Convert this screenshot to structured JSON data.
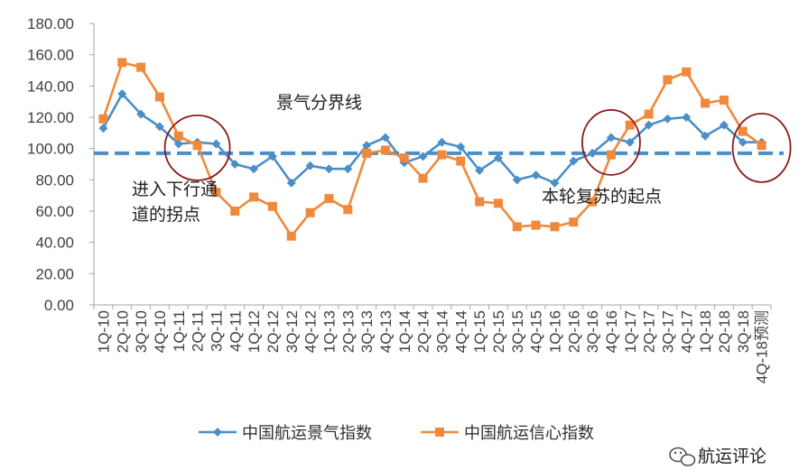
{
  "chart_data": {
    "type": "line",
    "categories": [
      "1Q-10",
      "2Q-10",
      "3Q-10",
      "4Q-10",
      "1Q-11",
      "2Q-11",
      "3Q-11",
      "4Q-11",
      "1Q-12",
      "2Q-12",
      "3Q-12",
      "4Q-12",
      "1Q-13",
      "2Q-13",
      "3Q-13",
      "4Q-13",
      "1Q-14",
      "2Q-14",
      "3Q-14",
      "4Q-14",
      "1Q-15",
      "2Q-15",
      "3Q-15",
      "4Q-15",
      "1Q-16",
      "2Q-16",
      "3Q-16",
      "4Q-16",
      "1Q-17",
      "2Q-17",
      "3Q-17",
      "4Q-17",
      "1Q-18",
      "2Q-18",
      "3Q-18",
      "4Q-18预测"
    ],
    "x_tick_labels": [
      "1Q-10",
      "2Q-10",
      "3Q-10",
      "4Q-10",
      "1Q-11",
      "2Q-11",
      "3Q-11",
      "4Q-11",
      "1Q-12",
      "2Q-12",
      "3Q-12",
      "4Q-12",
      "1Q-13",
      "2Q-13",
      "3Q-13",
      "4Q-13",
      "1Q-14",
      "2Q-14",
      "3Q-14",
      "4Q-14",
      "1Q-15",
      "2Q-15",
      "3Q-15",
      "4Q-15",
      "1Q-16",
      "2Q-16",
      "3Q-16",
      "4Q-16",
      "1Q-17",
      "2Q-17",
      "3Q-17",
      "4Q-17",
      "1Q-18",
      "2Q-18",
      "3Q-18",
      "4Q-18预测"
    ],
    "series": [
      {
        "name": "中国航运景气指数",
        "color": "#4a8fc8",
        "marker": "diamond",
        "values": [
          113,
          135,
          122,
          114,
          103,
          104,
          103,
          90,
          87,
          95,
          78,
          89,
          87,
          87,
          102,
          107,
          91,
          95,
          104,
          101,
          86,
          94,
          80,
          83,
          78,
          92,
          97,
          107,
          104,
          115,
          119,
          120,
          108,
          115,
          104,
          104
        ]
      },
      {
        "name": "中国航运信心指数",
        "color": "#f0893c",
        "marker": "square",
        "values": [
          119,
          155,
          152,
          133,
          108,
          102,
          72,
          60,
          69,
          63,
          44,
          59,
          68,
          61,
          97,
          99,
          94,
          81,
          96,
          92,
          66,
          65,
          50,
          51,
          50,
          53,
          66,
          96,
          115,
          122,
          144,
          149,
          129,
          131,
          111,
          102
        ]
      }
    ],
    "y_ticks": [
      "0.00",
      "20.00",
      "40.00",
      "60.00",
      "80.00",
      "100.00",
      "120.00",
      "140.00",
      "160.00",
      "180.00"
    ],
    "ylim": [
      0,
      180
    ],
    "reference_line": {
      "value": 97,
      "label": "景气分界线",
      "color": "#4a8fc8"
    },
    "annotations": [
      {
        "lines": [
          "进入下行通",
          "道的拐点"
        ],
        "circle_at_category": "2Q-11"
      },
      {
        "lines": [
          "本轮复苏的起点"
        ],
        "circle_at_category": "4Q-16"
      },
      {
        "lines": [],
        "circle_at_category": "4Q-18预测"
      }
    ],
    "circle_color": "#8b1a1a",
    "legend_position": "bottom",
    "grid": false,
    "title": "",
    "xlabel": "",
    "ylabel": ""
  },
  "watermark": {
    "icon": "wechat-icon",
    "text": "航运评论"
  }
}
